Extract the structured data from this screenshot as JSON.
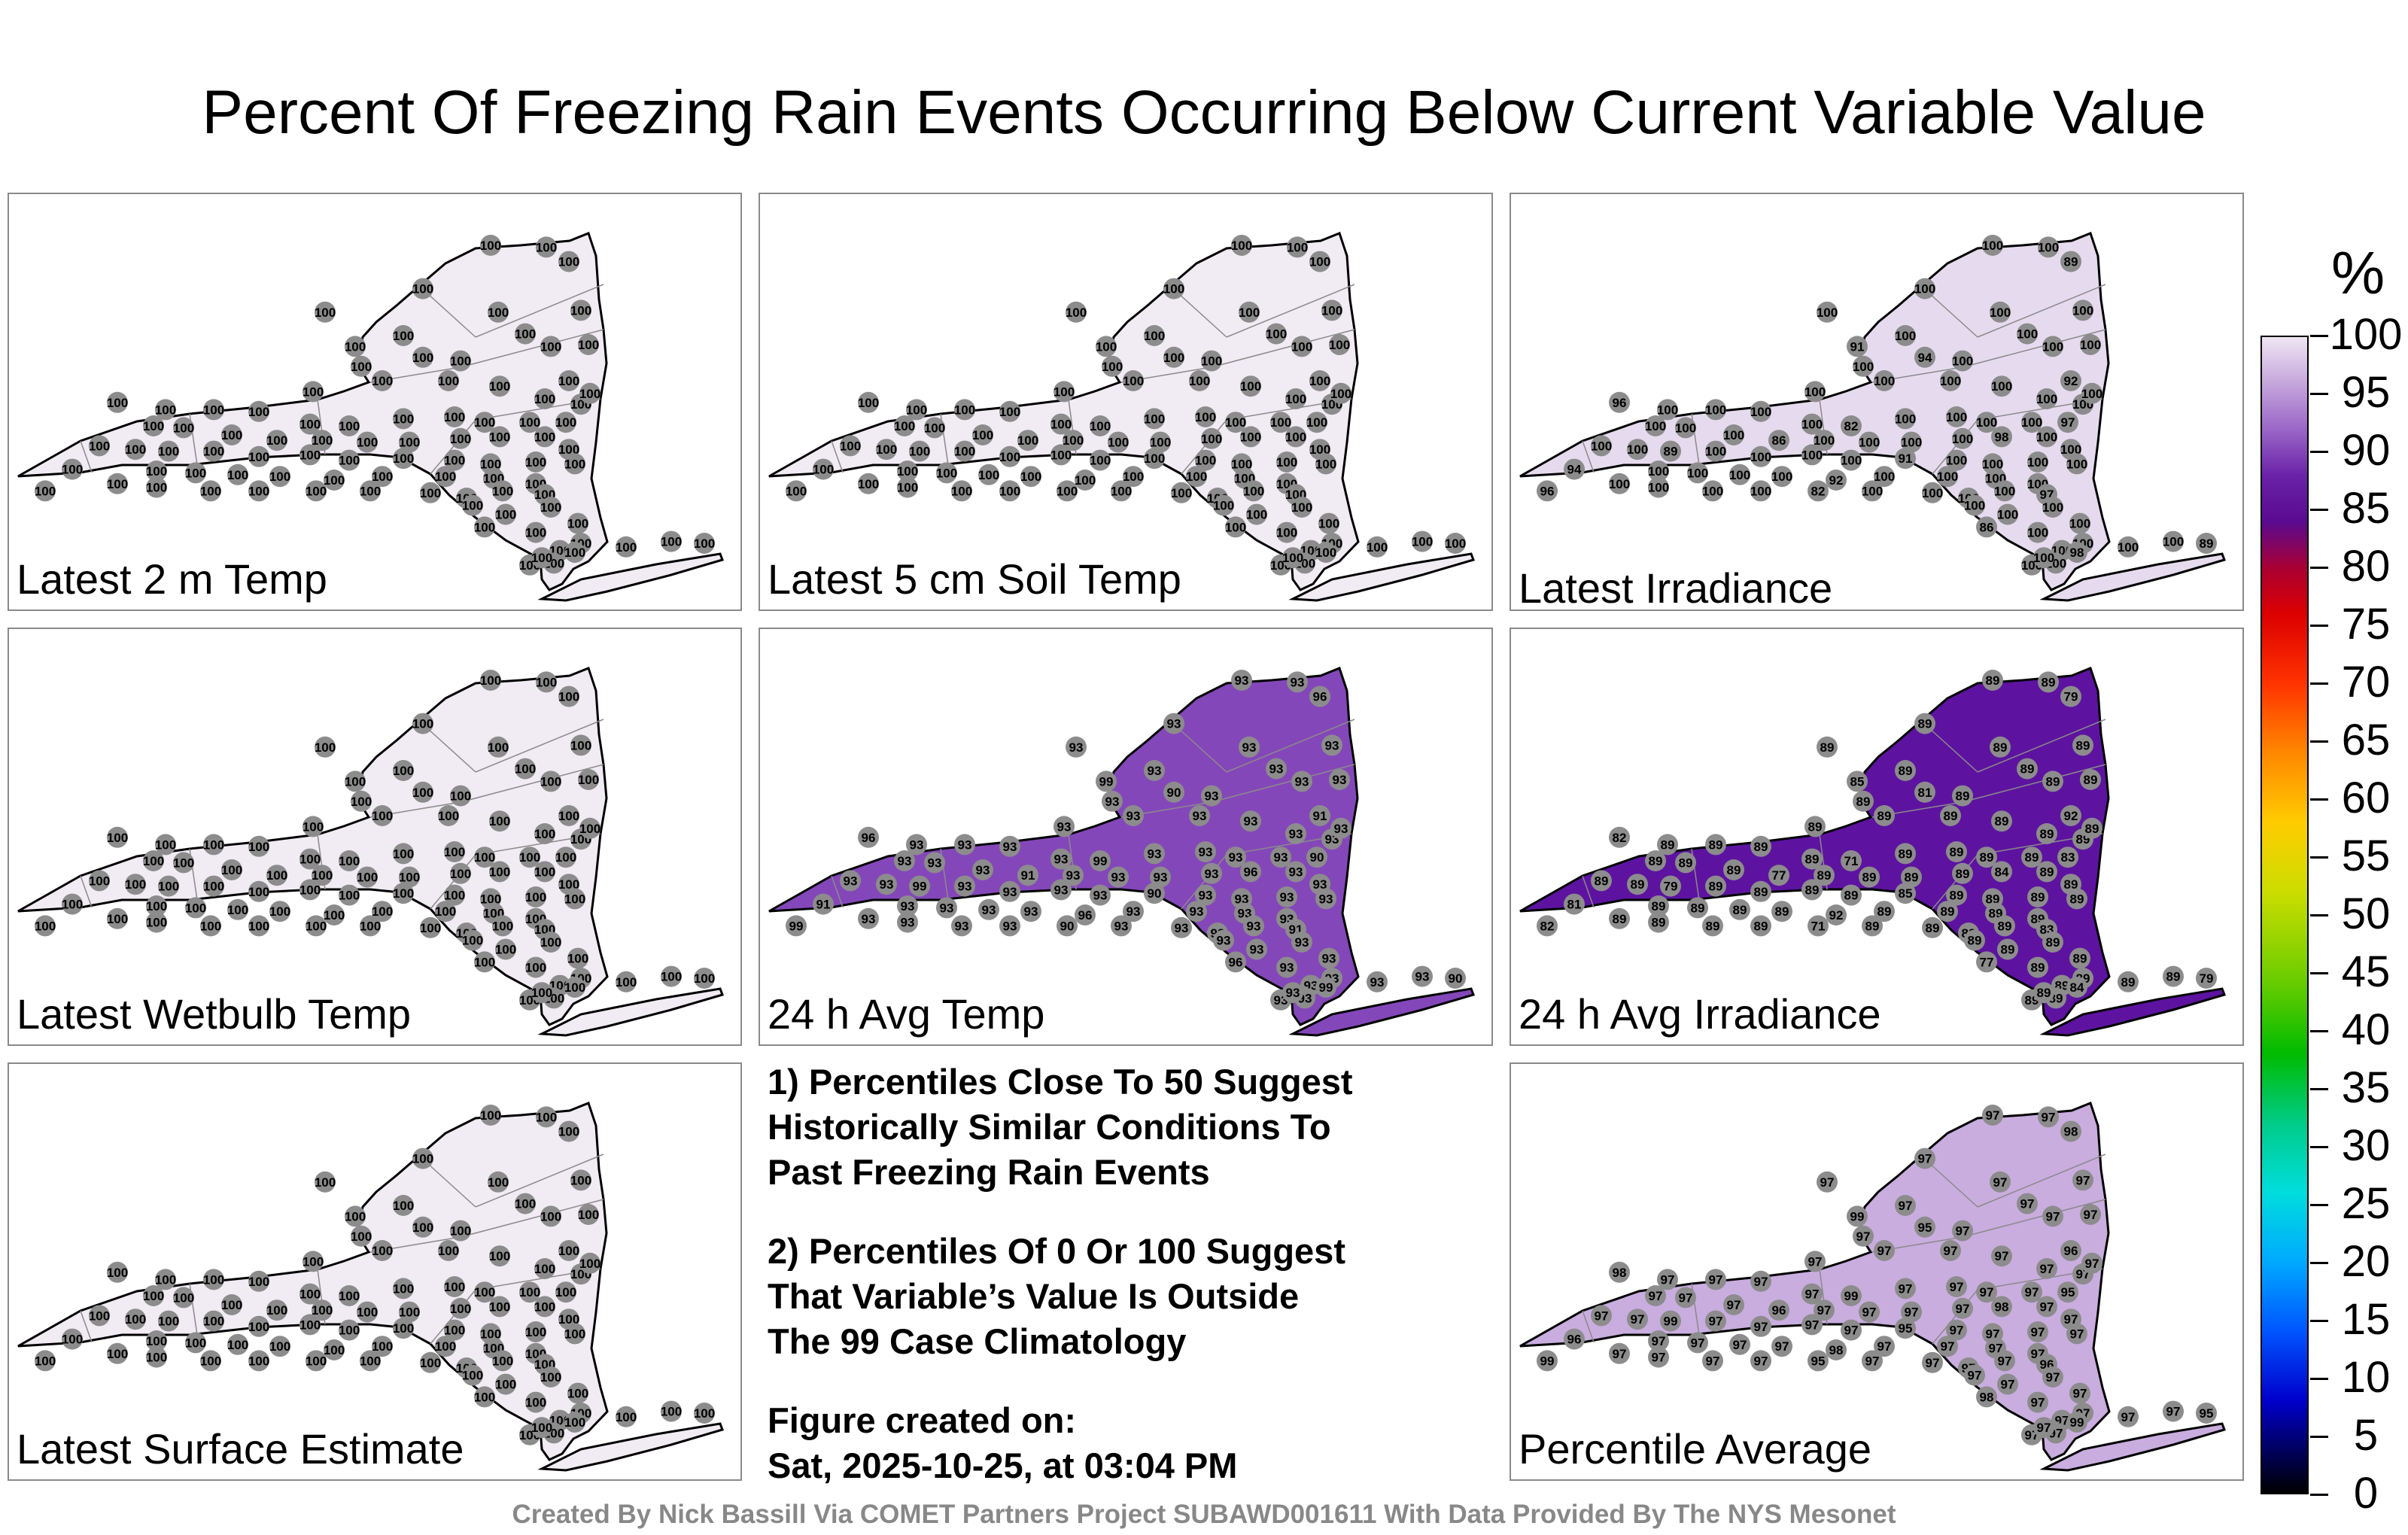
{
  "title": "Percent Of Freezing Rain Events Occurring Below Current Variable Value",
  "panels": [
    {
      "label": "Latest 2 m Temp",
      "dominant_value": "100",
      "fill": "#f1ebf4",
      "hotspots": []
    },
    {
      "label": "Latest 5 cm Soil Temp",
      "dominant_value": "100",
      "fill": "#f1ebf4",
      "hotspots": []
    },
    {
      "label": "Latest Irradiance",
      "dominant_value": "100",
      "fill": "#e6dbee",
      "hotspots": [
        "82",
        "86",
        "89",
        "94",
        "96",
        "97",
        "98",
        "91",
        "92"
      ]
    },
    {
      "label": "Latest Wetbulb Temp",
      "dominant_value": "100",
      "fill": "#f1ebf4",
      "hotspots": []
    },
    {
      "label": "24 h Avg Temp",
      "dominant_value": "93",
      "fill": "#8447b9",
      "hotspots": [
        "90",
        "91",
        "96",
        "99"
      ]
    },
    {
      "label": "24 h Avg Irradiance",
      "dominant_value": "89",
      "fill": "#5d13a0",
      "hotspots": [
        "71",
        "77",
        "79",
        "81",
        "82",
        "83",
        "84",
        "85",
        "92"
      ]
    },
    {
      "label": "Latest Surface Estimate",
      "dominant_value": "100",
      "fill": "#f1ebf4",
      "hotspots": []
    },
    {
      "label": "Percentile Average",
      "dominant_value": "97",
      "fill": "#c9addf",
      "hotspots": [
        "95",
        "96",
        "98",
        "99"
      ]
    }
  ],
  "notes": [
    [
      "1) Percentiles Close To 50 Suggest",
      "Historically Similar Conditions To",
      "Past Freezing Rain Events"
    ],
    [
      "2) Percentiles Of 0 Or 100 Suggest",
      "That Variable’s Value Is Outside",
      "The 99 Case Climatology"
    ],
    [
      "Figure created on:",
      "Sat, 2025-10-25, at 03:04 PM"
    ]
  ],
  "colorbar": {
    "unit": "%",
    "ticks": [
      "100",
      "95",
      "90",
      "85",
      "80",
      "75",
      "70",
      "65",
      "60",
      "55",
      "50",
      "45",
      "40",
      "35",
      "30",
      "25",
      "20",
      "15",
      "10",
      "5",
      "0"
    ]
  },
  "credit": "Created By Nick Bassill Via COMET Partners Project SUBAWD001611 With Data Provided By The NYS Mesonet"
}
